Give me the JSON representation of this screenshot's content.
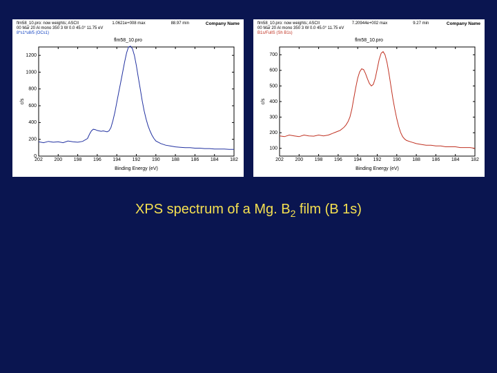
{
  "slide": {
    "background_color": "#0a1550",
    "caption_html": "XPS spectrum of a Mg. B",
    "caption_sub": "2",
    "caption_tail": " film (B 1s)",
    "caption_color": "#f5e050",
    "caption_fontsize": 20
  },
  "charts": [
    {
      "type": "line",
      "header": {
        "line1": "flm58_10.pro: now weights; ASCII",
        "line2": "00 Mar 20  Al mono  350 3 W  0.0  45.0°  11.75 eV",
        "line3": "8*s1*u8/5 (OCs1)",
        "mid1": "1.0621e+008 max",
        "mid2": "88.97 min",
        "right": "Company Name"
      },
      "title": "flm58_10.pro",
      "series_color": "#2030a0",
      "background_color": "#ffffff",
      "axis_color": "#000000",
      "x": {
        "label": "Binding Energy (eV)",
        "min": 202,
        "max": 182,
        "ticks": [
          202,
          200,
          198,
          196,
          194,
          192,
          190,
          188,
          186,
          184,
          182
        ]
      },
      "y": {
        "label": "c/s",
        "min": 0,
        "max": 1300,
        "ticks": [
          0,
          200,
          400,
          600,
          800,
          1000,
          1200
        ]
      },
      "data": [
        [
          202,
          170
        ],
        [
          201.5,
          160
        ],
        [
          201,
          175
        ],
        [
          200.5,
          165
        ],
        [
          200,
          170
        ],
        [
          199.5,
          160
        ],
        [
          199,
          180
        ],
        [
          198.5,
          170
        ],
        [
          198,
          165
        ],
        [
          197.5,
          175
        ],
        [
          197,
          210
        ],
        [
          196.8,
          260
        ],
        [
          196.6,
          300
        ],
        [
          196.4,
          320
        ],
        [
          196.2,
          315
        ],
        [
          196,
          305
        ],
        [
          195.8,
          300
        ],
        [
          195.6,
          295
        ],
        [
          195.4,
          300
        ],
        [
          195.2,
          295
        ],
        [
          195,
          290
        ],
        [
          194.8,
          300
        ],
        [
          194.6,
          340
        ],
        [
          194.4,
          420
        ],
        [
          194.2,
          520
        ],
        [
          194,
          640
        ],
        [
          193.8,
          760
        ],
        [
          193.6,
          880
        ],
        [
          193.4,
          1000
        ],
        [
          193.2,
          1120
        ],
        [
          193,
          1230
        ],
        [
          192.8,
          1300
        ],
        [
          192.6,
          1310
        ],
        [
          192.4,
          1280
        ],
        [
          192.2,
          1200
        ],
        [
          192,
          1080
        ],
        [
          191.8,
          940
        ],
        [
          191.6,
          800
        ],
        [
          191.4,
          660
        ],
        [
          191.2,
          540
        ],
        [
          191,
          440
        ],
        [
          190.8,
          360
        ],
        [
          190.6,
          300
        ],
        [
          190.4,
          250
        ],
        [
          190.2,
          210
        ],
        [
          190,
          180
        ],
        [
          189.5,
          150
        ],
        [
          189,
          130
        ],
        [
          188.5,
          120
        ],
        [
          188,
          110
        ],
        [
          187.5,
          105
        ],
        [
          187,
          100
        ],
        [
          186.5,
          100
        ],
        [
          186,
          95
        ],
        [
          185.5,
          95
        ],
        [
          185,
          90
        ],
        [
          184.5,
          90
        ],
        [
          184,
          85
        ],
        [
          183.5,
          85
        ],
        [
          183,
          85
        ],
        [
          182.5,
          80
        ],
        [
          182,
          80
        ]
      ],
      "line_width": 1.0
    },
    {
      "type": "line",
      "header": {
        "line1": "flm58_10.pro: now weights; ASCII",
        "line2": "00 Mar 20  Al mono  350 3 W  0.0  45.0°  11.75 eV",
        "line3": "B1s/FullS (Sh B1s)",
        "mid1": "7.20944e+002 max",
        "mid2": "9.27 min",
        "right": "Company Name"
      },
      "title": "flm58_10.pro",
      "series_color": "#c03020",
      "background_color": "#ffffff",
      "axis_color": "#000000",
      "x": {
        "label": "Binding Energy (eV)",
        "min": 202,
        "max": 182,
        "ticks": [
          202,
          200,
          198,
          196,
          194,
          192,
          190,
          188,
          186,
          184,
          182
        ]
      },
      "y": {
        "label": "c/s",
        "min": 50,
        "max": 750,
        "ticks": [
          100,
          200,
          300,
          400,
          500,
          600,
          700
        ]
      },
      "data": [
        [
          202,
          180
        ],
        [
          201.5,
          175
        ],
        [
          201,
          185
        ],
        [
          200.5,
          180
        ],
        [
          200,
          175
        ],
        [
          199.5,
          185
        ],
        [
          199,
          180
        ],
        [
          198.5,
          178
        ],
        [
          198,
          185
        ],
        [
          197.5,
          180
        ],
        [
          197,
          185
        ],
        [
          196.8,
          190
        ],
        [
          196.6,
          195
        ],
        [
          196.4,
          200
        ],
        [
          196.2,
          205
        ],
        [
          196,
          210
        ],
        [
          195.8,
          215
        ],
        [
          195.6,
          225
        ],
        [
          195.4,
          235
        ],
        [
          195.2,
          250
        ],
        [
          195,
          270
        ],
        [
          194.8,
          300
        ],
        [
          194.6,
          350
        ],
        [
          194.4,
          420
        ],
        [
          194.2,
          490
        ],
        [
          194,
          550
        ],
        [
          193.8,
          590
        ],
        [
          193.6,
          610
        ],
        [
          193.4,
          605
        ],
        [
          193.2,
          580
        ],
        [
          193,
          545
        ],
        [
          192.8,
          515
        ],
        [
          192.6,
          500
        ],
        [
          192.4,
          510
        ],
        [
          192.2,
          550
        ],
        [
          192,
          610
        ],
        [
          191.8,
          670
        ],
        [
          191.6,
          710
        ],
        [
          191.4,
          720
        ],
        [
          191.2,
          700
        ],
        [
          191,
          650
        ],
        [
          190.8,
          580
        ],
        [
          190.6,
          500
        ],
        [
          190.4,
          420
        ],
        [
          190.2,
          350
        ],
        [
          190,
          290
        ],
        [
          189.8,
          240
        ],
        [
          189.6,
          200
        ],
        [
          189.4,
          175
        ],
        [
          189.2,
          160
        ],
        [
          189,
          150
        ],
        [
          188.5,
          140
        ],
        [
          188,
          130
        ],
        [
          187.5,
          125
        ],
        [
          187,
          120
        ],
        [
          186.5,
          120
        ],
        [
          186,
          115
        ],
        [
          185.5,
          115
        ],
        [
          185,
          110
        ],
        [
          184.5,
          110
        ],
        [
          184,
          110
        ],
        [
          183.5,
          105
        ],
        [
          183,
          105
        ],
        [
          182.5,
          105
        ],
        [
          182,
          100
        ]
      ],
      "line_width": 1.0
    }
  ]
}
